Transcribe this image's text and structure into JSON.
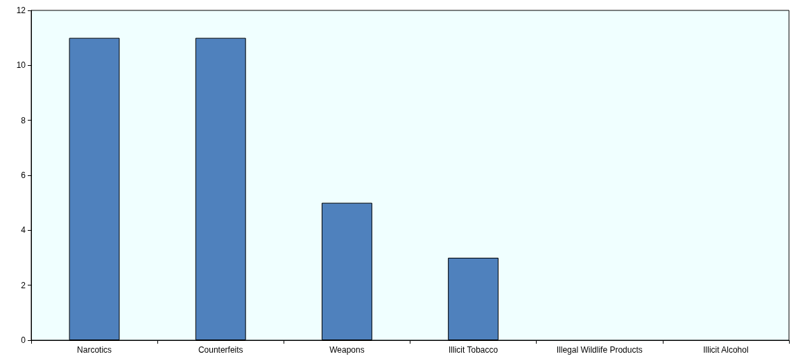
{
  "chart_data": {
    "type": "bar",
    "categories": [
      "Narcotics",
      "Counterfeits",
      "Weapons",
      "Illicit Tobacco",
      "Illegal Wildlife Products",
      "Illicit Alcohol"
    ],
    "values": [
      11,
      11,
      5,
      3,
      0,
      0
    ],
    "color": "#4f81bd",
    "ylim": [
      0,
      12
    ],
    "yticks": [
      0,
      2,
      4,
      6,
      8,
      10,
      12
    ],
    "grid": false
  }
}
